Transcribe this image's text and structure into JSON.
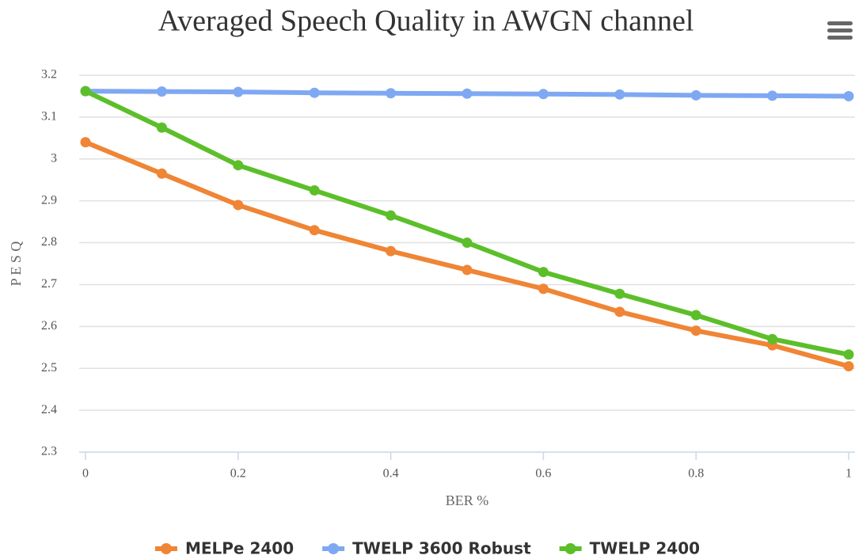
{
  "chart_data": {
    "type": "line",
    "title": "Averaged Speech Quality in AWGN channel",
    "x_label": "BER %",
    "y_label": "P E S Q",
    "x": [
      0,
      0.1,
      0.2,
      0.3,
      0.4,
      0.5,
      0.6,
      0.7,
      0.8,
      0.9,
      1
    ],
    "series": [
      {
        "name": "MELPe 2400",
        "color": "#ef8535",
        "values": [
          3.04,
          2.965,
          2.89,
          2.83,
          2.78,
          2.735,
          2.69,
          2.635,
          2.59,
          2.555,
          2.505
        ]
      },
      {
        "name": "TWELP 3600 Robust",
        "color": "#7fa8f3",
        "values": [
          3.162,
          3.161,
          3.16,
          3.158,
          3.157,
          3.156,
          3.155,
          3.154,
          3.152,
          3.151,
          3.15
        ]
      },
      {
        "name": "TWELP 2400",
        "color": "#5cbf2a",
        "values": [
          3.162,
          3.075,
          2.985,
          2.925,
          2.865,
          2.8,
          2.73,
          2.678,
          2.627,
          2.57,
          2.533
        ]
      }
    ],
    "xlim": [
      0,
      1
    ],
    "xticks": [
      0,
      0.2,
      0.4,
      0.6,
      0.8,
      1
    ],
    "ylim": [
      2.3,
      3.2
    ],
    "yticks": [
      2.3,
      2.4,
      2.5,
      2.6,
      2.7,
      2.8,
      2.9,
      3,
      3.1,
      3.2
    ],
    "grid": true,
    "legend": "bottom"
  }
}
